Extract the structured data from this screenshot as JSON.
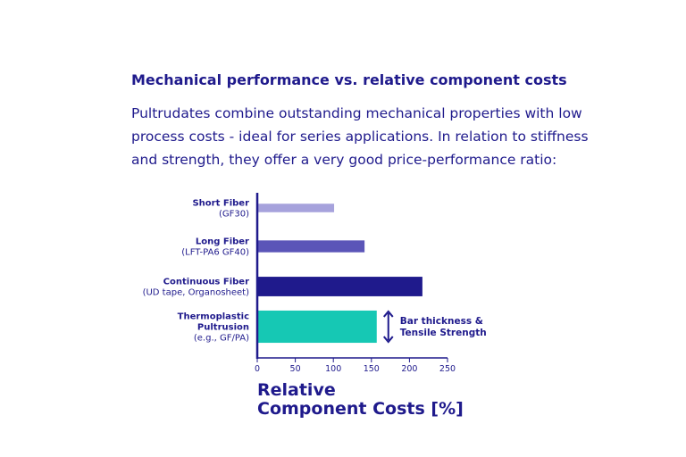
{
  "heading": "Mechanical performance vs. relative component costs",
  "intro_lines": [
    "Pultrudates combine outstanding mechanical properties with low",
    "process costs - ideal for series applications. In relation to stiffness",
    "and strength, they offer a very good price-performance ratio:"
  ],
  "chart_data": {
    "type": "bar",
    "orientation": "horizontal",
    "categories": [
      {
        "name": "Short Fiber",
        "sub": "(GF30)"
      },
      {
        "name": "Long Fiber",
        "sub": "(LFT-PA6 GF40)"
      },
      {
        "name": "Continuous Fiber",
        "sub": "(UD tape, Organosheet)"
      },
      {
        "name": "Thermoplastic",
        "name2": "Pultrusion",
        "sub": "(e.g., GF/PA)"
      }
    ],
    "values": [
      101,
      141,
      217,
      157
    ],
    "bar_thickness_relative": [
      1,
      1.4,
      2.3,
      3.8
    ],
    "colors": [
      "#a6a2dc",
      "#5b55b8",
      "#1f1a8c",
      "#16c8b4"
    ],
    "xlim": [
      0,
      250
    ],
    "xticks": [
      "0",
      "50",
      "100",
      "150",
      "200",
      "250"
    ],
    "xlabel_lines": [
      "Relative",
      "Component Costs [%]"
    ],
    "annotation_lines": [
      "Bar thickness &",
      "Tensile Strength"
    ],
    "grid": false
  }
}
